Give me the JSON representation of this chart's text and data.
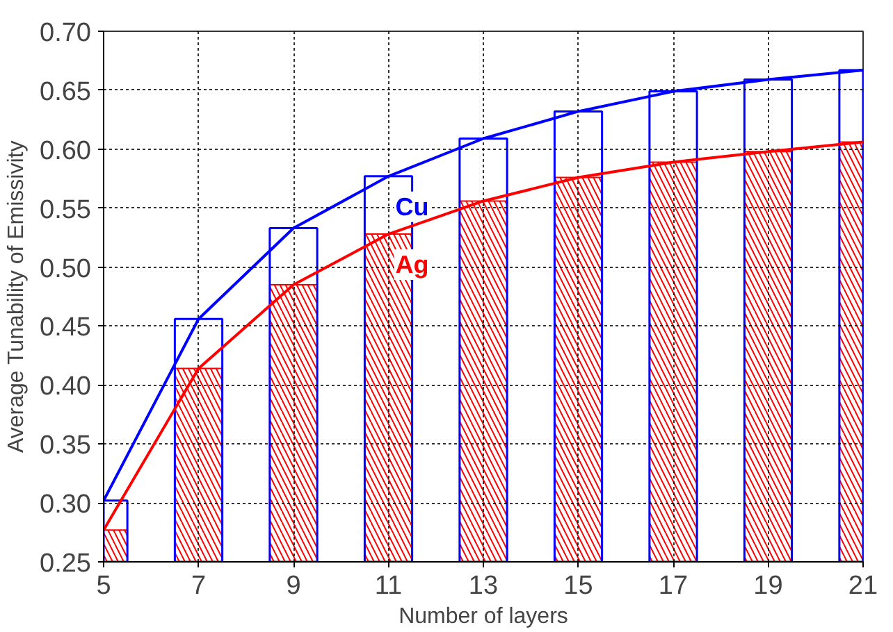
{
  "chart_data": {
    "type": "bar",
    "xlabel": "Number of layers",
    "ylabel": "Average Tunability of Emissivity",
    "x": [
      5,
      7,
      9,
      11,
      13,
      15,
      17,
      19,
      21
    ],
    "series": [
      {
        "color": "#0000ff",
        "values": [
          0.302,
          0.456,
          0.533,
          0.577,
          0.609,
          0.632,
          0.649,
          0.659,
          0.667
        ]
      },
      {
        "color": "#ff0000",
        "values": [
          0.277,
          0.414,
          0.485,
          0.528,
          0.556,
          0.576,
          0.589,
          0.598,
          0.606
        ]
      },
      {
        "type": "line",
        "name": "Cu",
        "color": "#0000ff",
        "values": [
          0.302,
          0.456,
          0.533,
          0.577,
          0.609,
          0.632,
          0.649,
          0.659,
          0.667
        ]
      },
      {
        "type": "line",
        "name": "Ag",
        "color": "#ff0000",
        "values": [
          0.277,
          0.414,
          0.485,
          0.528,
          0.556,
          0.576,
          0.589,
          0.598,
          0.606
        ]
      }
    ],
    "xlim": [
      5,
      21
    ],
    "xticks": [
      5,
      7,
      9,
      11,
      13,
      15,
      17,
      19,
      21
    ],
    "ylim": [
      0.25,
      0.7
    ],
    "yticks": [
      0.25,
      {
        "value": 0.3,
        "label": "0.30"
      },
      0.35,
      {
        "value": 0.4,
        "label": "0.40"
      },
      0.45,
      {
        "value": 0.5,
        "label": "0.50"
      },
      0.55,
      {
        "value": 0.6,
        "label": "0.60"
      },
      0.65,
      {
        "value": 0.7,
        "label": "0.70"
      }
    ],
    "grid": true,
    "marker": "none",
    "line_style": "solid"
  }
}
